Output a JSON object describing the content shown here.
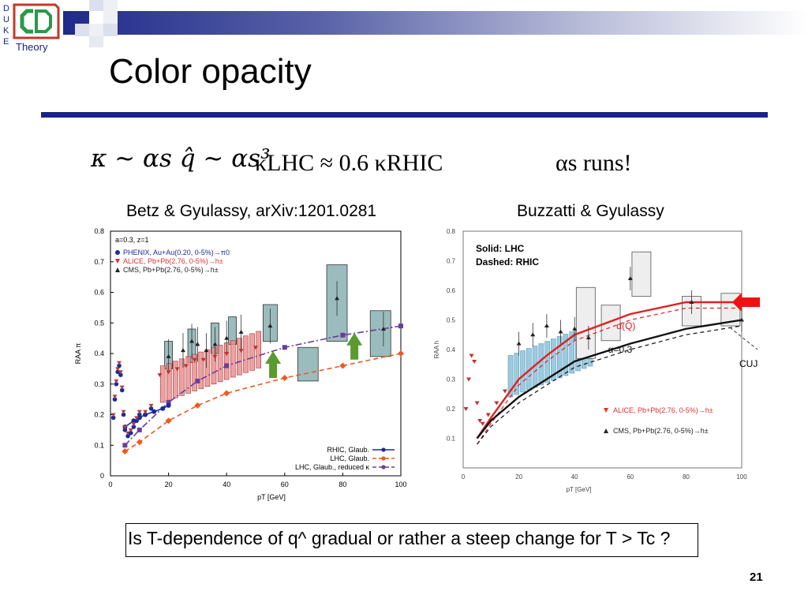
{
  "logo": {
    "letters": [
      "D",
      "U",
      "K",
      "E"
    ],
    "word": "Theory"
  },
  "slide": {
    "title": "Color opacity",
    "kappa_formula": "κ ~ αs q̂ ~ αs³",
    "kappa_relation": "κLHC ≈ 0.6 κRHIC",
    "alpha_runs": "αs runs!",
    "left_citation": "Betz & Gyulassy, arXiv:1201.0281",
    "right_citation": "Buzzatti & Gyulassy",
    "question": "Is T-dependence of q^ gradual or rather a steep change for T > Tc ?",
    "page_number": "21"
  },
  "colors": {
    "navy": "#1a2488",
    "rhic_blue": "#1c2a9c",
    "lhc_orange": "#f0581e",
    "reduced_purple": "#6a3d9a",
    "arrow_green": "#5a9a30",
    "box_teal": "#8ab0b0",
    "box_pink": "#e88a8a",
    "box_blue": "#9ccbe0",
    "red_curve": "#dd2222",
    "right_red_arrow": "#ee1111"
  },
  "chart_data": [
    {
      "type": "scatter",
      "title": "",
      "xlabel": "pT [GeV]",
      "ylabel": "RAA π",
      "xlim": [
        0,
        100
      ],
      "ylim": [
        0,
        0.8
      ],
      "xticks": [
        "0",
        "20",
        "40",
        "60",
        "80",
        "100"
      ],
      "yticks": [
        "0",
        "0.1",
        "0.2",
        "0.3",
        "0.4",
        "0.5",
        "0.6",
        "0.7",
        "0.8"
      ],
      "annotation": "a=0.3, z=1",
      "legend_top": [
        {
          "label": "PHENIX, Au+Au(0.20, 0-5%)→π0",
          "color": "#1c2a9c"
        },
        {
          "label": "ALICE, Pb+Pb(2.76, 0-5%)→h±",
          "color": "#e03030"
        },
        {
          "label": "CMS, Pb+Pb(2.76, 0-5%)→h±",
          "color": "#222222"
        }
      ],
      "legend_bottom": [
        {
          "label": "RHIC, Glaub.",
          "color": "#1c2a9c"
        },
        {
          "label": "LHC, Glaub.",
          "color": "#f0581e"
        },
        {
          "label": "LHC, Glaub., reduced κ",
          "color": "#6a3d9a"
        }
      ],
      "series": [
        {
          "name": "RHIC, Glaub.",
          "x": [
            5,
            8,
            10,
            12,
            15,
            18,
            20
          ],
          "y": [
            0.16,
            0.18,
            0.19,
            0.2,
            0.21,
            0.22,
            0.23
          ]
        },
        {
          "name": "LHC, Glaub.",
          "x": [
            5,
            10,
            20,
            30,
            40,
            60,
            80,
            100
          ],
          "y": [
            0.08,
            0.11,
            0.18,
            0.23,
            0.27,
            0.32,
            0.36,
            0.4
          ]
        },
        {
          "name": "LHC, Glaub., reduced κ",
          "x": [
            5,
            10,
            20,
            30,
            40,
            60,
            80,
            100
          ],
          "y": [
            0.1,
            0.15,
            0.24,
            0.31,
            0.36,
            0.42,
            0.46,
            0.49
          ]
        },
        {
          "name": "CMS, Pb+Pb(2.76, 0-5%)→h±",
          "x": [
            20,
            25,
            28,
            30,
            33,
            36,
            40,
            45,
            55,
            78,
            94
          ],
          "y": [
            0.39,
            0.41,
            0.44,
            0.43,
            0.41,
            0.43,
            0.45,
            0.47,
            0.49,
            0.58,
            0.48
          ]
        },
        {
          "name": "ALICE, Pb+Pb(2.76, 0-5%)→h±",
          "x": [
            17,
            20,
            23,
            26,
            29,
            32,
            36,
            40,
            45,
            50
          ],
          "y": [
            0.33,
            0.34,
            0.35,
            0.36,
            0.38,
            0.38,
            0.39,
            0.4,
            0.41,
            0.42
          ]
        }
      ]
    },
    {
      "type": "scatter",
      "title": "",
      "xlabel": "pT [GeV]",
      "ylabel": "RAA h",
      "xlim": [
        0,
        100
      ],
      "ylim": [
        0,
        0.8
      ],
      "xticks": [
        "0",
        "20",
        "40",
        "60",
        "80",
        "100"
      ],
      "yticks": [
        "0.1",
        "0.2",
        "0.3",
        "0.4",
        "0.5",
        "0.6",
        "0.7",
        "0.8"
      ],
      "annotation_top": [
        "Solid: LHC",
        "Dashed: RHIC"
      ],
      "curve_labels": [
        "α(Q)",
        "α=0.3"
      ],
      "legend": [
        {
          "label": "ALICE, Pb+Pb(2.76, 0-5%)→h±",
          "color": "#e03030"
        },
        {
          "label": "CMS, Pb+Pb(2.76, 0-5%)→h±",
          "color": "#222222"
        }
      ],
      "side_label": "CUJ",
      "series": [
        {
          "name": "α(Q)",
          "x": [
            5,
            10,
            20,
            30,
            40,
            60,
            80,
            100
          ],
          "y": [
            0.1,
            0.17,
            0.3,
            0.38,
            0.45,
            0.52,
            0.56,
            0.56
          ]
        },
        {
          "name": "α=0.3",
          "x": [
            5,
            10,
            20,
            30,
            40,
            60,
            80,
            100
          ],
          "y": [
            0.1,
            0.16,
            0.24,
            0.3,
            0.36,
            0.42,
            0.47,
            0.5
          ]
        },
        {
          "name": "CMS, Pb+Pb(2.76, 0-5%)→h±",
          "x": [
            20,
            25,
            30,
            35,
            40,
            45,
            60,
            82,
            100
          ],
          "y": [
            0.42,
            0.45,
            0.48,
            0.46,
            0.47,
            0.44,
            0.64,
            0.56,
            0.5
          ]
        }
      ]
    }
  ]
}
